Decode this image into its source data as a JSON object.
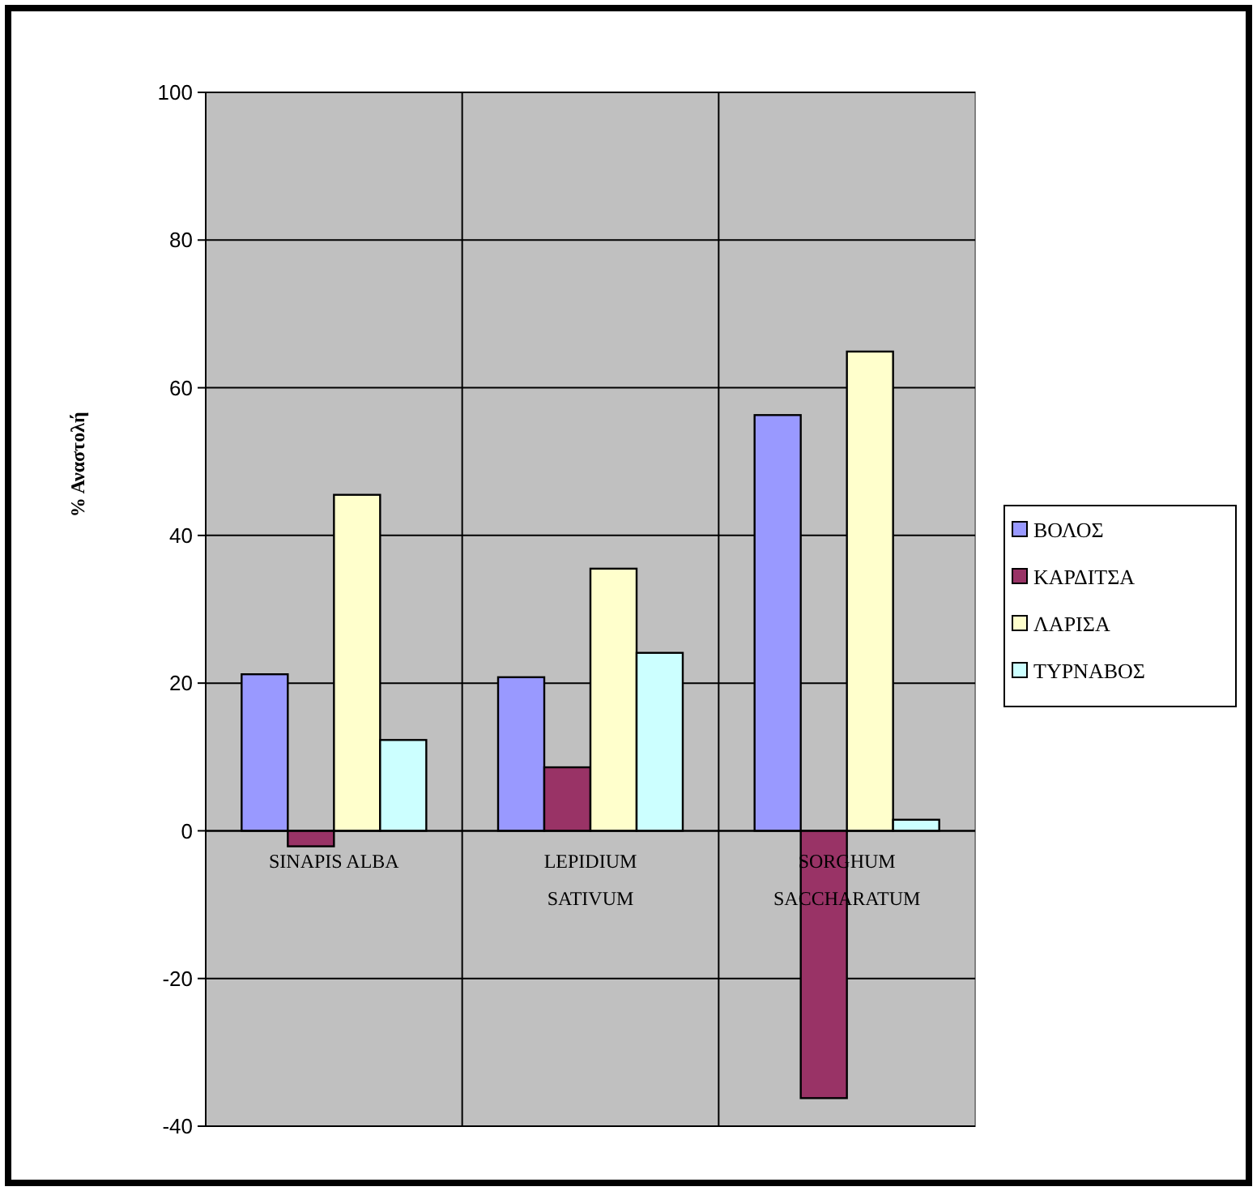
{
  "chart_data": {
    "type": "bar",
    "ylabel": "% Αναστολή",
    "categories": [
      "SINAPIS ALBA",
      "LEPIDIUM SATIVUM",
      "SORGHUM SACCHARATUM"
    ],
    "series": [
      {
        "name": "ΒΟΛΟΣ",
        "color": "#9999ff",
        "values": [
          21.2,
          20.8,
          56.3
        ]
      },
      {
        "name": "ΚΑΡΔΙΤΣΑ",
        "color": "#993366",
        "values": [
          -2.1,
          8.6,
          -36.2
        ]
      },
      {
        "name": "ΛΑΡΙΣΑ",
        "color": "#ffffcc",
        "values": [
          45.5,
          35.5,
          64.9
        ]
      },
      {
        "name": "ΤΥΡΝΑΒΟΣ",
        "color": "#ccffff",
        "values": [
          12.3,
          24.1,
          1.5
        ]
      }
    ],
    "ylim": [
      -40,
      100
    ],
    "yticks": [
      -40,
      -20,
      0,
      20,
      40,
      60,
      80,
      100
    ],
    "grid": true,
    "legend": "right"
  }
}
